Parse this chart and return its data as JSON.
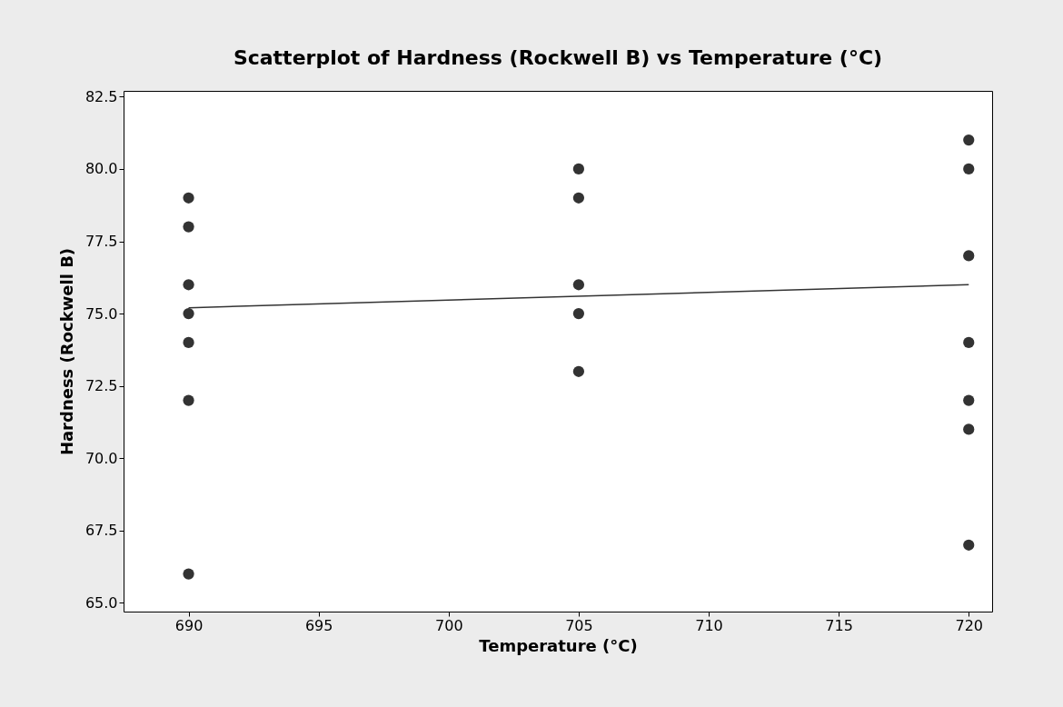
{
  "chart_data": {
    "type": "scatter",
    "title": "Scatterplot of Hardness (Rockwell B) vs Temperature (°C)",
    "xlabel": "Temperature (°C)",
    "ylabel": "Hardness (Rockwell B)",
    "xlim": [
      687.5,
      720.9
    ],
    "ylim": [
      64.7,
      82.7
    ],
    "xticks": [
      690,
      695,
      700,
      705,
      710,
      715,
      720
    ],
    "yticks": [
      {
        "value": 65,
        "label": "65.0"
      },
      {
        "value": 67.5,
        "label": "67.5"
      },
      {
        "value": 70,
        "label": "70.0"
      },
      {
        "value": 72.5,
        "label": "72.5"
      },
      {
        "value": 75,
        "label": "75.0"
      },
      {
        "value": 77.5,
        "label": "77.5"
      },
      {
        "value": 80,
        "label": "80.0"
      },
      {
        "value": 82.5,
        "label": "82.5"
      }
    ],
    "series": [
      {
        "marker": "circle",
        "color": "#333333",
        "x": [
          690,
          690,
          690,
          690,
          690,
          690,
          690,
          705,
          705,
          705,
          705,
          705,
          720,
          720,
          720,
          720,
          720,
          720,
          720
        ],
        "values": [
          79,
          78,
          76,
          75,
          74,
          72,
          66,
          80,
          79,
          76,
          75,
          73,
          81,
          80,
          77,
          74,
          72,
          71,
          67
        ]
      },
      {
        "type": "line",
        "color": "#333333",
        "line_style": "solid",
        "x": [
          690,
          720
        ],
        "values": [
          75.2,
          76.0
        ]
      }
    ]
  }
}
